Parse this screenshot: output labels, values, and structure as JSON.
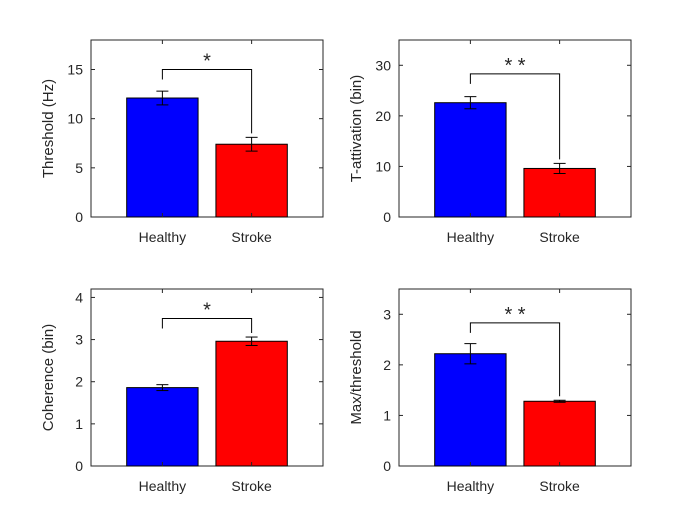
{
  "chart_data": [
    {
      "type": "bar",
      "categories": [
        "Healthy",
        "Stroke"
      ],
      "values": [
        12.1,
        7.4
      ],
      "errors": [
        0.7,
        0.7
      ],
      "colors": [
        "#0000ff",
        "#ff0000"
      ],
      "ylabel": "Threshold (Hz)",
      "ylim": [
        0,
        18
      ],
      "yticks": [
        0,
        5,
        10,
        15
      ],
      "significance": "*",
      "bracket_top": 15.0,
      "grid": false
    },
    {
      "type": "bar",
      "categories": [
        "Healthy",
        "Stroke"
      ],
      "values": [
        22.6,
        9.6
      ],
      "errors": [
        1.2,
        1.0
      ],
      "colors": [
        "#0000ff",
        "#ff0000"
      ],
      "ylabel": "T-attivation (bin)",
      "ylim": [
        0,
        35
      ],
      "yticks": [
        0,
        10,
        20,
        30
      ],
      "significance": "* *",
      "bracket_top": 28.3,
      "grid": false
    },
    {
      "type": "bar",
      "categories": [
        "Healthy",
        "Stroke"
      ],
      "values": [
        1.86,
        2.96
      ],
      "errors": [
        0.07,
        0.1
      ],
      "colors": [
        "#0000ff",
        "#ff0000"
      ],
      "ylabel": "Coherence (bin)",
      "ylim": [
        0,
        4.2
      ],
      "yticks": [
        0,
        1,
        2,
        3,
        4
      ],
      "significance": "*",
      "bracket_top": 3.5,
      "grid": false
    },
    {
      "type": "bar",
      "categories": [
        "Healthy",
        "Stroke"
      ],
      "values": [
        2.22,
        1.28
      ],
      "errors": [
        0.2,
        0.02
      ],
      "colors": [
        "#0000ff",
        "#ff0000"
      ],
      "ylabel": "Max/threshold",
      "ylim": [
        0,
        3.5
      ],
      "yticks": [
        0,
        1,
        2,
        3
      ],
      "significance": "* *",
      "bracket_top": 2.83,
      "grid": false
    }
  ]
}
